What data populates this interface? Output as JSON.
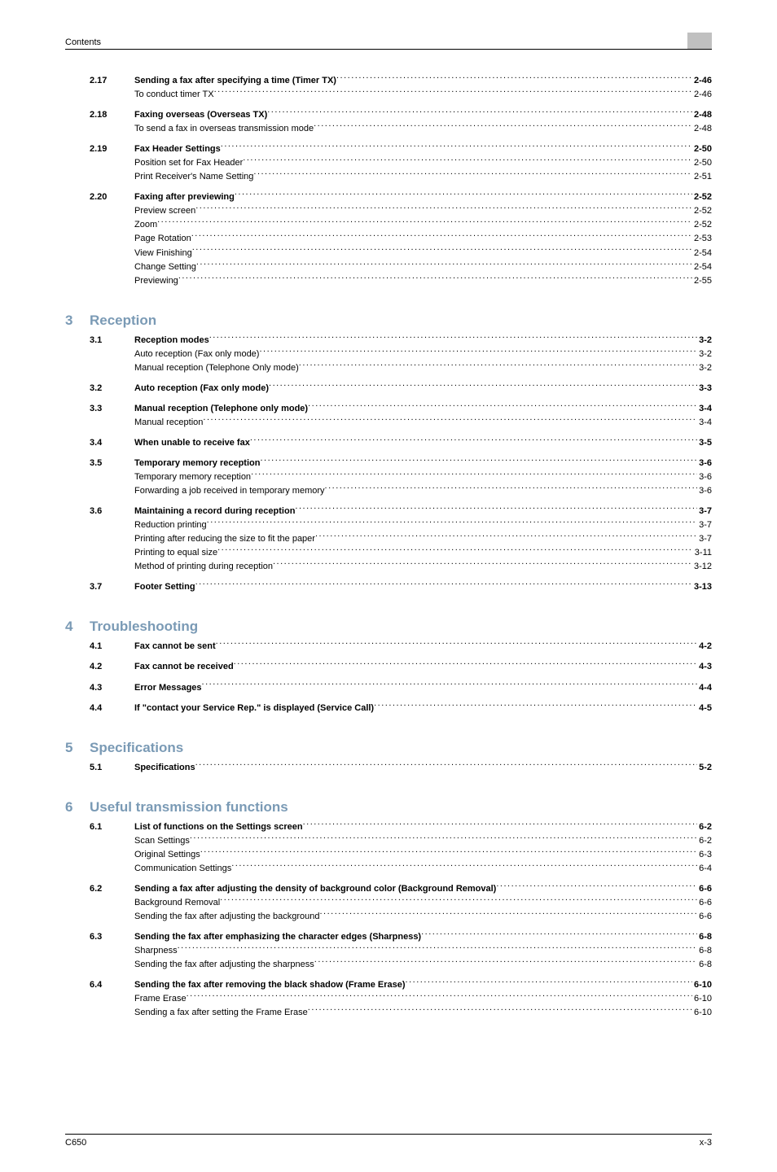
{
  "header": {
    "label": "Contents"
  },
  "footer": {
    "left": "C650",
    "right": "x-3"
  },
  "chapters": [
    {
      "num": "",
      "title": "",
      "sections": [
        {
          "num": "2.17",
          "title": "Sending a fax after specifying a time (Timer TX)",
          "page": "2-46",
          "subs": [
            {
              "title": "To conduct timer TX",
              "page": "2-46"
            }
          ]
        },
        {
          "num": "2.18",
          "title": "Faxing overseas (Overseas TX)",
          "page": "2-48",
          "subs": [
            {
              "title": "To send a fax in overseas transmission mode",
              "page": "2-48"
            }
          ]
        },
        {
          "num": "2.19",
          "title": "Fax Header Settings",
          "page": "2-50",
          "subs": [
            {
              "title": "Position set for Fax Header",
              "page": "2-50"
            },
            {
              "title": "Print Receiver's Name Setting",
              "page": "2-51"
            }
          ]
        },
        {
          "num": "2.20",
          "title": "Faxing after previewing",
          "page": "2-52",
          "subs": [
            {
              "title": "Preview screen",
              "page": "2-52"
            },
            {
              "title": "Zoom",
              "page": "2-52"
            },
            {
              "title": "Page Rotation",
              "page": "2-53"
            },
            {
              "title": "View Finishing",
              "page": "2-54"
            },
            {
              "title": "Change Setting",
              "page": "2-54"
            },
            {
              "title": "Previewing",
              "page": "2-55"
            }
          ]
        }
      ]
    },
    {
      "num": "3",
      "title": "Reception",
      "sections": [
        {
          "num": "3.1",
          "title": "Reception modes",
          "page": "3-2",
          "subs": [
            {
              "title": "Auto reception (Fax only mode)",
              "page": "3-2"
            },
            {
              "title": "Manual reception (Telephone Only mode)",
              "page": "3-2"
            }
          ]
        },
        {
          "num": "3.2",
          "title": "Auto reception (Fax only mode)",
          "page": "3-3",
          "subs": []
        },
        {
          "num": "3.3",
          "title": "Manual reception (Telephone only mode)",
          "page": "3-4",
          "subs": [
            {
              "title": "Manual reception",
              "page": "3-4"
            }
          ]
        },
        {
          "num": "3.4",
          "title": "When unable to receive fax",
          "page": "3-5",
          "subs": []
        },
        {
          "num": "3.5",
          "title": "Temporary memory reception",
          "page": "3-6",
          "subs": [
            {
              "title": "Temporary memory reception",
              "page": "3-6"
            },
            {
              "title": "Forwarding a job received in temporary memory",
              "page": "3-6"
            }
          ]
        },
        {
          "num": "3.6",
          "title": "Maintaining a record during reception",
          "page": "3-7",
          "subs": [
            {
              "title": "Reduction printing",
              "page": "3-7"
            },
            {
              "title": "Printing after reducing the size to fit the paper",
              "page": "3-7"
            },
            {
              "title": "Printing to equal size",
              "page": "3-11"
            },
            {
              "title": "Method of printing during reception",
              "page": "3-12"
            }
          ]
        },
        {
          "num": "3.7",
          "title": "Footer Setting",
          "page": "3-13",
          "subs": []
        }
      ]
    },
    {
      "num": "4",
      "title": "Troubleshooting",
      "sections": [
        {
          "num": "4.1",
          "title": "Fax cannot be sent",
          "page": "4-2",
          "subs": []
        },
        {
          "num": "4.2",
          "title": "Fax cannot be received",
          "page": "4-3",
          "subs": []
        },
        {
          "num": "4.3",
          "title": "Error Messages",
          "page": "4-4",
          "subs": []
        },
        {
          "num": "4.4",
          "title": "If \"contact your Service Rep.\" is displayed (Service Call)",
          "page": "4-5",
          "subs": []
        }
      ]
    },
    {
      "num": "5",
      "title": "Specifications",
      "sections": [
        {
          "num": "5.1",
          "title": "Specifications",
          "page": "5-2",
          "subs": []
        }
      ]
    },
    {
      "num": "6",
      "title": "Useful transmission functions",
      "sections": [
        {
          "num": "6.1",
          "title": "List of functions on the Settings screen",
          "page": "6-2",
          "subs": [
            {
              "title": "Scan Settings",
              "page": "6-2"
            },
            {
              "title": "Original Settings",
              "page": "6-3"
            },
            {
              "title": "Communication Settings",
              "page": "6-4"
            }
          ]
        },
        {
          "num": "6.2",
          "title": "Sending a fax after adjusting the density of background color (Background Removal)",
          "page": "6-6",
          "subs": [
            {
              "title": "Background Removal",
              "page": "6-6"
            },
            {
              "title": "Sending the fax after adjusting the background",
              "page": "6-6"
            }
          ]
        },
        {
          "num": "6.3",
          "title": "Sending the fax after emphasizing the character edges (Sharpness)",
          "page": "6-8",
          "subs": [
            {
              "title": "Sharpness",
              "page": "6-8"
            },
            {
              "title": "Sending the fax after adjusting the sharpness",
              "page": "6-8"
            }
          ]
        },
        {
          "num": "6.4",
          "title": "Sending the fax after removing the black shadow (Frame Erase)",
          "page": "6-10",
          "subs": [
            {
              "title": "Frame Erase",
              "page": "6-10"
            },
            {
              "title": "Sending a fax after setting the Frame Erase",
              "page": "6-10"
            }
          ]
        }
      ]
    }
  ]
}
